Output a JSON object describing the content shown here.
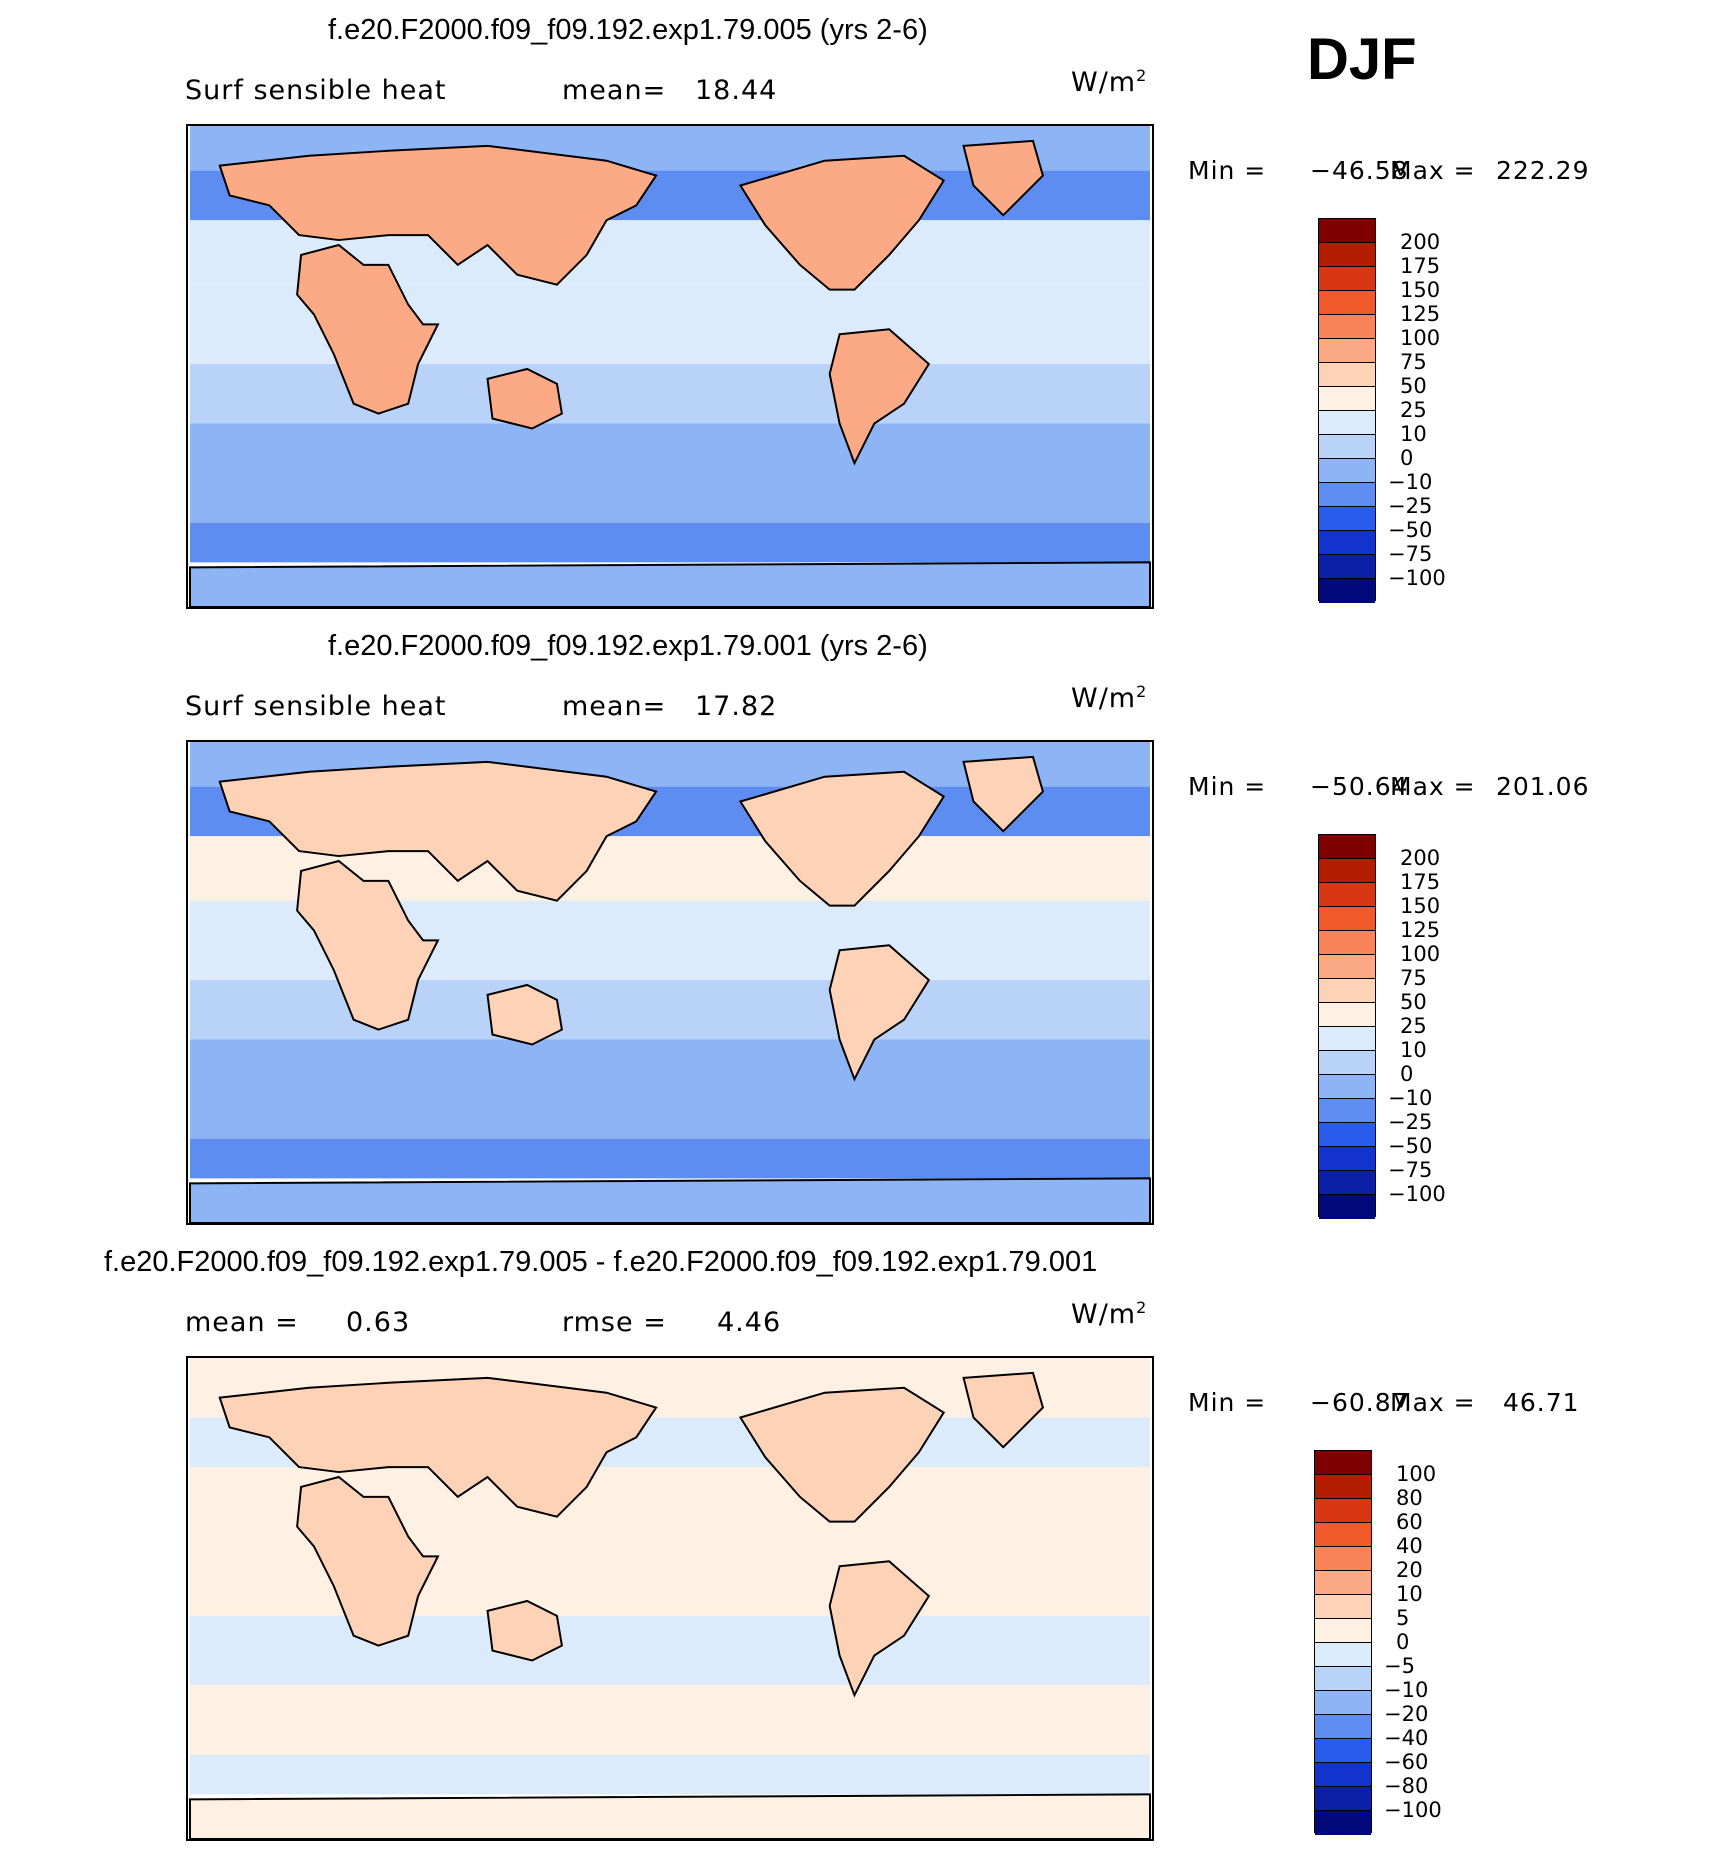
{
  "season": "DJF",
  "chart_data": [
    {
      "type": "heatmap",
      "title": "f.e20.F2000.f09_f09.192.exp1.79.005 (yrs 2-6)",
      "variable": "Surf sensible heat",
      "stat1_label": "mean=",
      "stat1_value": "18.44",
      "units": "W/m",
      "units_exp": "2",
      "min_label": "Min =",
      "min": "−46.58",
      "max_label": "Max =",
      "max": "222.29",
      "levels": [
        "200",
        "175",
        "150",
        "125",
        "100",
        "75",
        "50",
        "25",
        "10",
        "0",
        "−10",
        "−25",
        "−50",
        "−75",
        "−100"
      ],
      "colors": [
        "#7f0000",
        "#b31d00",
        "#d93614",
        "#f05a2a",
        "#f98457",
        "#fcaa86",
        "#fed2b6",
        "#fef0e2",
        "#dcebfb",
        "#b9d3f8",
        "#8db4f5",
        "#5d8df0",
        "#2a5cec",
        "#1233ce",
        "#0a1fa6",
        "#00087a"
      ]
    },
    {
      "type": "heatmap",
      "title": "f.e20.F2000.f09_f09.192.exp1.79.001 (yrs 2-6)",
      "variable": "Surf sensible heat",
      "stat1_label": "mean=",
      "stat1_value": "17.82",
      "units": "W/m",
      "units_exp": "2",
      "min_label": "Min =",
      "min": "−50.64",
      "max_label": "Max =",
      "max": "201.06",
      "levels": [
        "200",
        "175",
        "150",
        "125",
        "100",
        "75",
        "50",
        "25",
        "10",
        "0",
        "−10",
        "−25",
        "−50",
        "−75",
        "−100"
      ],
      "colors": [
        "#7f0000",
        "#b31d00",
        "#d93614",
        "#f05a2a",
        "#f98457",
        "#fcaa86",
        "#fed2b6",
        "#fef0e2",
        "#dcebfb",
        "#b9d3f8",
        "#8db4f5",
        "#5d8df0",
        "#2a5cec",
        "#1233ce",
        "#0a1fa6",
        "#00087a"
      ]
    },
    {
      "type": "heatmap",
      "title": "f.e20.F2000.f09_f09.192.exp1.79.005 - f.e20.F2000.f09_f09.192.exp1.79.001",
      "stat1_label": "mean =",
      "stat1_value": "0.63",
      "stat2_label": "rmse =",
      "stat2_value": "4.46",
      "units": "W/m",
      "units_exp": "2",
      "min_label": "Min =",
      "min": "−60.87",
      "max_label": "Max =",
      "max": "46.71",
      "levels": [
        "100",
        "80",
        "60",
        "40",
        "20",
        "10",
        "5",
        "0",
        "−5",
        "−10",
        "−20",
        "−40",
        "−60",
        "−80",
        "−100"
      ],
      "colors": [
        "#7f0000",
        "#b31d00",
        "#d93614",
        "#f05a2a",
        "#f98457",
        "#fcaa86",
        "#fed2b6",
        "#fef0e2",
        "#dcebfb",
        "#b9d3f8",
        "#8db4f5",
        "#5d8df0",
        "#2a5cec",
        "#1233ce",
        "#0a1fa6",
        "#00087a"
      ]
    }
  ]
}
